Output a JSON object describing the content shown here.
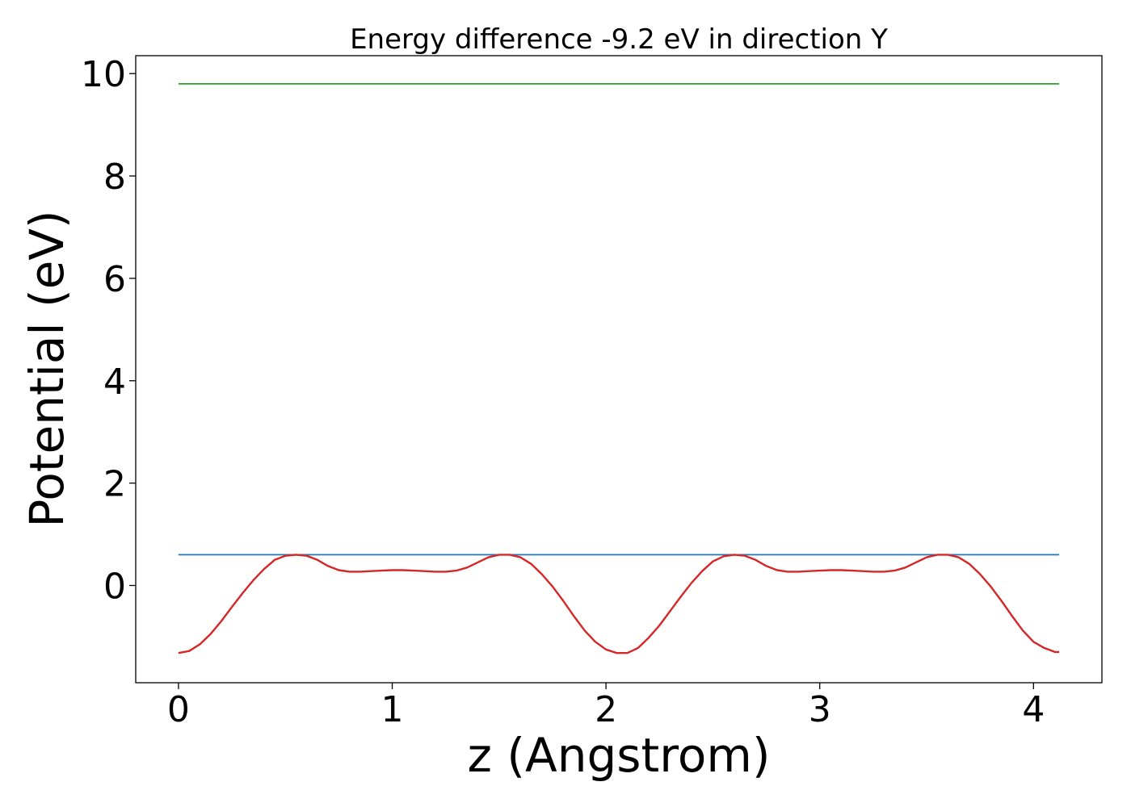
{
  "chart_data": {
    "type": "line",
    "title": "Energy difference -9.2 eV in direction Y",
    "xlabel": "z (Angstrom)",
    "ylabel": "Potential (eV)",
    "xlim": [
      -0.2,
      4.32
    ],
    "ylim": [
      -1.9,
      10.35
    ],
    "xticks": [
      0,
      1,
      2,
      3,
      4
    ],
    "yticks": [
      0,
      2,
      4,
      6,
      8,
      10
    ],
    "grid": false,
    "series": [
      {
        "color": "#d62728",
        "x": [
          0.0,
          0.05,
          0.1,
          0.15,
          0.2,
          0.25,
          0.3,
          0.35,
          0.4,
          0.45,
          0.5,
          0.55,
          0.6,
          0.65,
          0.7,
          0.75,
          0.8,
          0.85,
          0.9,
          0.95,
          1.0,
          1.05,
          1.1,
          1.15,
          1.2,
          1.25,
          1.3,
          1.35,
          1.4,
          1.45,
          1.5,
          1.55,
          1.6,
          1.65,
          1.7,
          1.75,
          1.8,
          1.85,
          1.9,
          1.95,
          2.0,
          2.05,
          2.1,
          2.15,
          2.2,
          2.25,
          2.3,
          2.35,
          2.4,
          2.45,
          2.5,
          2.55,
          2.6,
          2.65,
          2.7,
          2.75,
          2.8,
          2.85,
          2.9,
          2.95,
          3.0,
          3.05,
          3.1,
          3.15,
          3.2,
          3.25,
          3.3,
          3.35,
          3.4,
          3.45,
          3.5,
          3.55,
          3.6,
          3.65,
          3.7,
          3.75,
          3.8,
          3.85,
          3.9,
          3.95,
          4.0,
          4.05,
          4.1,
          4.12
        ],
        "y": [
          -1.32,
          -1.28,
          -1.15,
          -0.95,
          -0.7,
          -0.42,
          -0.15,
          0.1,
          0.32,
          0.5,
          0.58,
          0.6,
          0.58,
          0.5,
          0.38,
          0.3,
          0.27,
          0.27,
          0.28,
          0.29,
          0.3,
          0.3,
          0.29,
          0.28,
          0.27,
          0.27,
          0.29,
          0.35,
          0.45,
          0.55,
          0.6,
          0.6,
          0.55,
          0.42,
          0.22,
          -0.02,
          -0.3,
          -0.6,
          -0.88,
          -1.1,
          -1.25,
          -1.32,
          -1.32,
          -1.22,
          -1.02,
          -0.78,
          -0.5,
          -0.22,
          0.05,
          0.28,
          0.47,
          0.57,
          0.6,
          0.58,
          0.5,
          0.38,
          0.3,
          0.27,
          0.27,
          0.28,
          0.29,
          0.3,
          0.3,
          0.29,
          0.28,
          0.27,
          0.27,
          0.29,
          0.35,
          0.45,
          0.55,
          0.6,
          0.6,
          0.55,
          0.42,
          0.22,
          -0.02,
          -0.3,
          -0.6,
          -0.88,
          -1.1,
          -1.22,
          -1.3,
          -1.3
        ]
      },
      {
        "color": "#1f77b4",
        "x": [
          0.0,
          4.12
        ],
        "y": [
          0.6,
          0.6
        ]
      },
      {
        "color": "#2ca02c",
        "x": [
          0.0,
          4.12
        ],
        "y": [
          9.8,
          9.8
        ]
      }
    ]
  }
}
